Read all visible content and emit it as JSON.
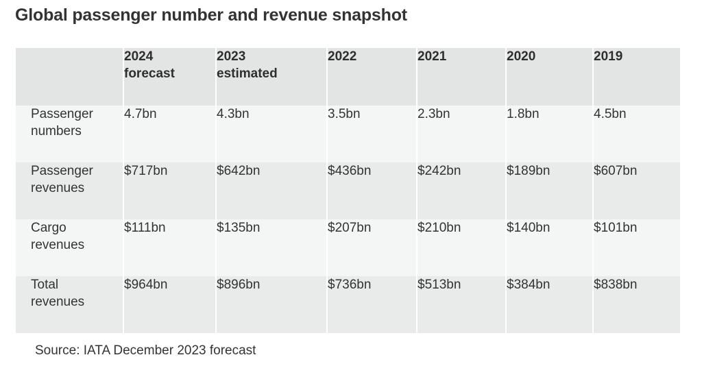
{
  "title": "Global passenger number and revenue snapshot",
  "table": {
    "headers": [
      {
        "line1": "",
        "line2": ""
      },
      {
        "line1": "2024",
        "line2": "forecast"
      },
      {
        "line1": "2023",
        "line2": "estimated"
      },
      {
        "line1": "2022",
        "line2": ""
      },
      {
        "line1": "2021",
        "line2": ""
      },
      {
        "line1": "2020",
        "line2": ""
      },
      {
        "line1": "2019",
        "line2": ""
      }
    ],
    "rows": [
      {
        "label_line1": "Passenger",
        "label_line2": "numbers",
        "values": [
          "4.7bn",
          "4.3bn",
          "3.5bn",
          "2.3bn",
          "1.8bn",
          "4.5bn"
        ]
      },
      {
        "label_line1": "Passenger",
        "label_line2": "revenues",
        "values": [
          "$717bn",
          "$642bn",
          "$436bn",
          "$242bn",
          "$189bn",
          "$607bn"
        ]
      },
      {
        "label_line1": "Cargo",
        "label_line2": "revenues",
        "values": [
          "$111bn",
          "$135bn",
          "$207bn",
          "$210bn",
          "$140bn",
          "$101bn"
        ]
      },
      {
        "label_line1": "Total",
        "label_line2": "revenues",
        "values": [
          "$964bn",
          "$896bn",
          "$736bn",
          "$513bn",
          "$384bn",
          "$838bn"
        ]
      }
    ]
  },
  "source": "Source: IATA December 2023 forecast"
}
